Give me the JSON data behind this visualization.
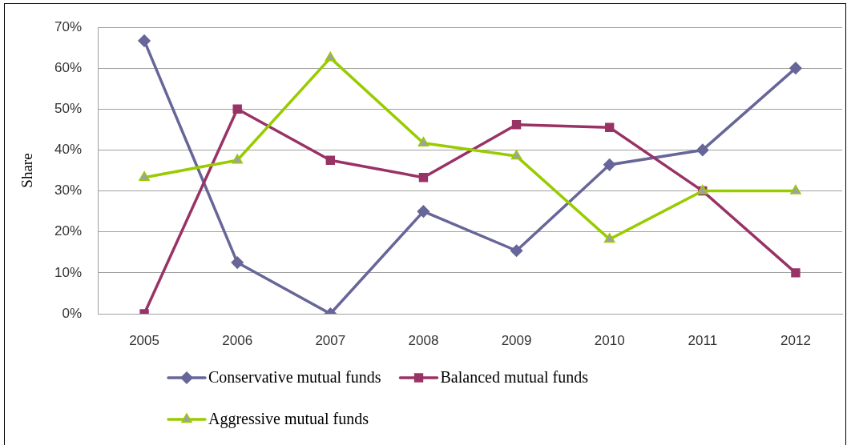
{
  "chart_data": {
    "type": "line",
    "ylabel": "Share",
    "categories": [
      "2005",
      "2006",
      "2007",
      "2008",
      "2009",
      "2010",
      "2011",
      "2012"
    ],
    "series": [
      {
        "name": "Conservative mutual funds",
        "color": "#666699",
        "marker": "diamond",
        "values": [
          66.7,
          12.5,
          0,
          25,
          15.4,
          36.4,
          40,
          60
        ]
      },
      {
        "name": "Balanced mutual funds",
        "color": "#993366",
        "marker": "square",
        "values": [
          0,
          50,
          37.5,
          33.3,
          46.2,
          45.5,
          30,
          10
        ]
      },
      {
        "name": "Aggressive mutual funds",
        "color": "#99cc00",
        "marker": "triangle",
        "values": [
          33.3,
          37.5,
          62.5,
          41.7,
          38.5,
          18.2,
          30,
          30
        ]
      }
    ],
    "ylim": [
      0,
      70
    ],
    "yticks": [
      {
        "value": 0,
        "label": "0%"
      },
      {
        "value": 10,
        "label": "10%"
      },
      {
        "value": 20,
        "label": "20%"
      },
      {
        "value": 30,
        "label": "30%"
      },
      {
        "value": 40,
        "label": "40%"
      },
      {
        "value": 50,
        "label": "50%"
      },
      {
        "value": 60,
        "label": "60%"
      },
      {
        "value": 70,
        "label": "70%"
      }
    ],
    "grid": "y",
    "legend": "bottom",
    "line_style": "solid"
  }
}
